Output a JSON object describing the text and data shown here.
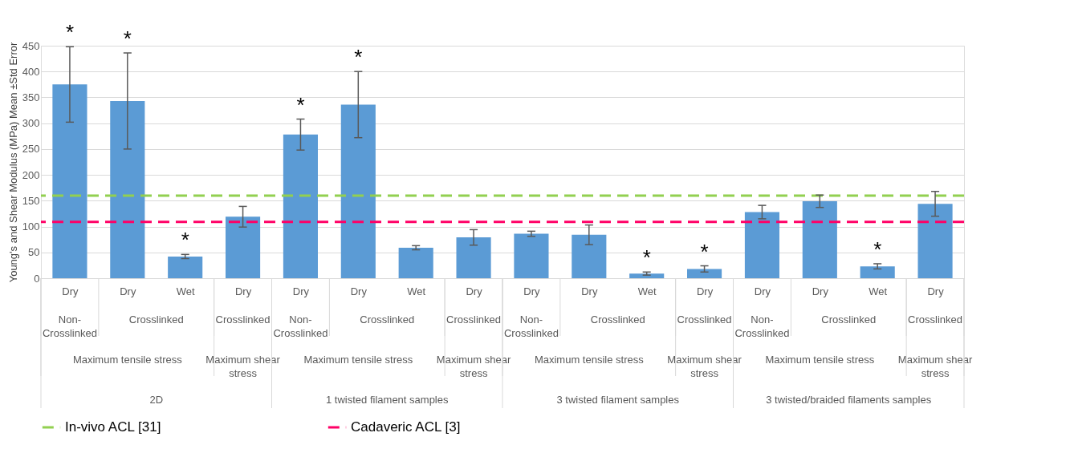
{
  "chart_data": {
    "type": "bar",
    "ylabel": "Young's and Shear Modulus (MPa) Mean ±Std Error",
    "categories": [
      "Dry",
      "Dry",
      "Wet",
      "Dry",
      "Dry",
      "Dry",
      "Wet",
      "Dry",
      "Dry",
      "Dry",
      "Wet",
      "Dry",
      "Dry",
      "Dry",
      "Wet",
      "Dry"
    ],
    "values": [
      375,
      343,
      42,
      119,
      278,
      336,
      59,
      79,
      86,
      84,
      9,
      18,
      128,
      149,
      23,
      144
    ],
    "errors": [
      73,
      93,
      4,
      20,
      30,
      64,
      4,
      15,
      5,
      19,
      3,
      6,
      13,
      12,
      5,
      24
    ],
    "value_labels": [
      "*",
      "*",
      "*",
      null,
      "*",
      "*",
      null,
      null,
      null,
      null,
      "*",
      "*",
      null,
      null,
      "*",
      null
    ],
    "color": "#5b9bd5",
    "ylim": [
      0,
      450
    ],
    "yticks": [
      0,
      50,
      100,
      150,
      200,
      250,
      300,
      350,
      400,
      450
    ],
    "grid": "y",
    "ref_lines": [
      {
        "axis": "y",
        "value": 160,
        "label": "In-vivo ACL [31]",
        "color": "#92d050",
        "line_style": "dashed"
      },
      {
        "axis": "y",
        "value": 109,
        "label": "Cadaveric ACL [3]",
        "color": "#ff0066",
        "line_style": "dashed"
      }
    ],
    "legend": "bottom",
    "annotations": [
      "Non-Crosslinked",
      "Crosslinked",
      "Crosslinked",
      "Non-Crosslinked",
      "Crosslinked",
      "Crosslinked",
      "Non-Crosslinked",
      "Crosslinked",
      "Crosslinked",
      "Non-Crosslinked",
      "Crosslinked",
      "Crosslinked",
      "Maximum tensile stress",
      "Maximum shear stress",
      "Maximum tensile stress",
      "Maximum shear stress",
      "Maximum tensile stress",
      "Maximum shear stress",
      "Maximum tensile stress",
      "Maximum shear stress",
      "2D",
      "1 twisted filament samples",
      "3 twisted filament samples",
      "3 twisted/braided filaments samples"
    ]
  }
}
